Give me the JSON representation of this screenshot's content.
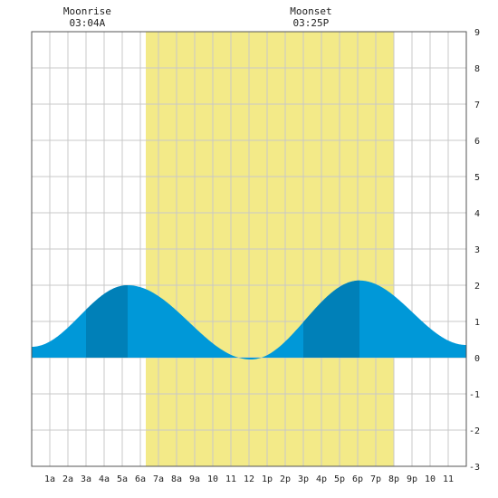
{
  "chart_data": {
    "type": "area",
    "x_unit": "hour",
    "xlim": [
      0,
      24
    ],
    "ylim": [
      -3,
      9
    ],
    "x_tick_labels": [
      "1a",
      "2a",
      "3a",
      "4a",
      "5a",
      "6a",
      "7a",
      "8a",
      "9a",
      "10",
      "11",
      "12",
      "1p",
      "2p",
      "3p",
      "4p",
      "5p",
      "6p",
      "7p",
      "8p",
      "9p",
      "10",
      "11"
    ],
    "y_tick_labels": [
      "-3",
      "-2",
      "-1",
      "0",
      "1",
      "2",
      "3",
      "4",
      "5",
      "6",
      "7",
      "8",
      "9"
    ],
    "y_ticks": [
      -3,
      -2,
      -1,
      0,
      1,
      2,
      3,
      4,
      5,
      6,
      7,
      8,
      9
    ],
    "grid": true,
    "daylight": {
      "start": 6.3,
      "end": 20.0
    },
    "extremes": [
      {
        "type": "low",
        "x": 0.0,
        "y": 0.3
      },
      {
        "type": "high",
        "x": 5.3,
        "y": 2.0
      },
      {
        "type": "low",
        "x": 12.1,
        "y": -0.05
      },
      {
        "type": "high",
        "x": 18.1,
        "y": 2.13
      },
      {
        "type": "low",
        "x": 24.0,
        "y": 0.35
      }
    ],
    "annotations": [
      {
        "name": "moonrise",
        "label": "Moonrise",
        "time": "03:04A",
        "x": 3.07
      },
      {
        "name": "moonset",
        "label": "Moonset",
        "time": "03:25P",
        "x": 15.42
      }
    ],
    "dark_bands": [
      {
        "start": 3.0,
        "end": 5.3
      },
      {
        "start": 15.0,
        "end": 18.1
      }
    ]
  },
  "colors": {
    "daylight": "#f3ea88",
    "water": "#0098d8",
    "water_dark": "#0080b8",
    "grid": "#c8c8c8",
    "frame": "#555555"
  }
}
